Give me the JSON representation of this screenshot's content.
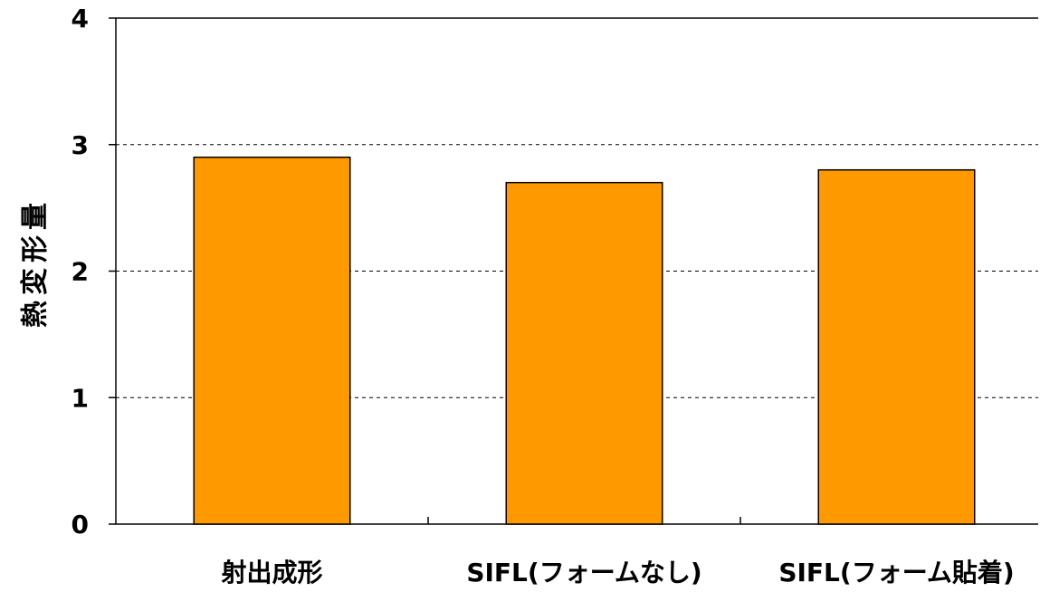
{
  "chart_data": {
    "type": "bar",
    "y_label": "熱変形量",
    "categories": [
      "射出成形",
      "SIFL(フォームなし)",
      "SIFL(フォーム貼着)"
    ],
    "values": [
      2.9,
      2.7,
      2.8
    ],
    "color": "#ff9900",
    "ylim": [
      0,
      4
    ],
    "yticks": [
      0,
      1,
      2,
      3,
      4
    ],
    "grid": true
  }
}
